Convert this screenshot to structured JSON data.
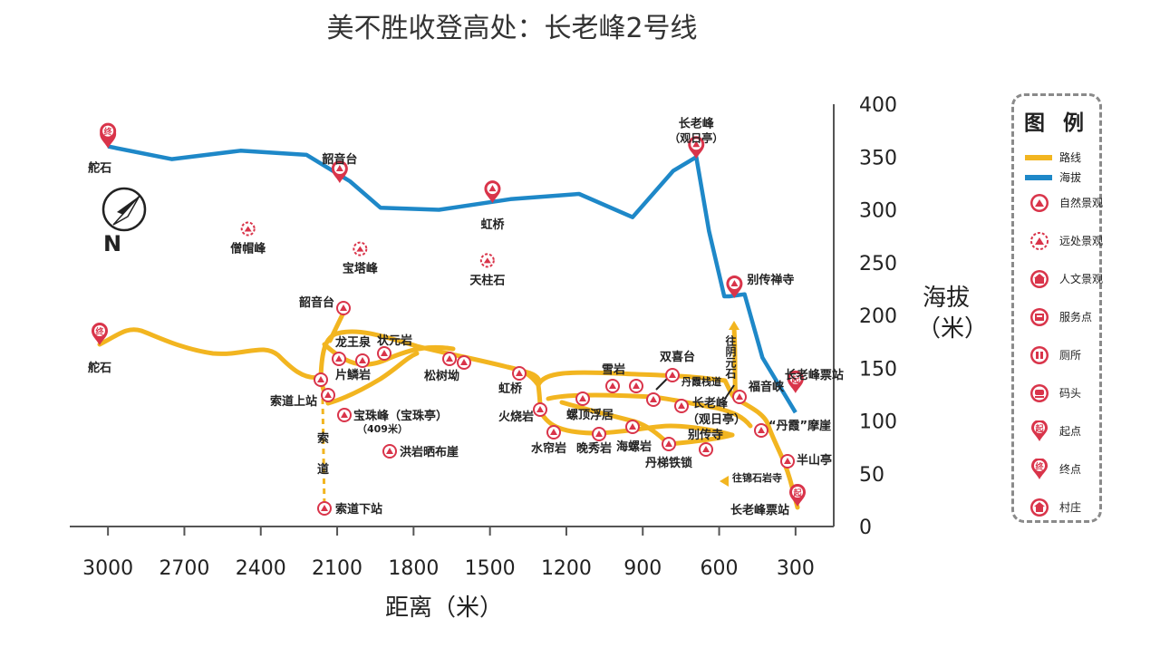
{
  "title": "美不胜收登高处：长老峰2号线",
  "axes": {
    "x_label": "距离（米）",
    "y_label_line1": "海拔",
    "y_label_line2": "（米）"
  },
  "colors": {
    "route": "#F2B520",
    "elevation": "#1E88C8",
    "marker": "#D9344A",
    "axis": "#555555"
  },
  "compass": {
    "label": "N"
  },
  "legend": {
    "title": "图 例",
    "items": [
      {
        "label": "路线",
        "icon": "route-line"
      },
      {
        "label": "海拔",
        "icon": "elevation-line"
      },
      {
        "label": "自然景观",
        "icon": "mountain-pin-icon"
      },
      {
        "label": "远处景观",
        "icon": "distant-view-icon"
      },
      {
        "label": "人文景观",
        "icon": "temple-icon"
      },
      {
        "label": "服务点",
        "icon": "service-icon"
      },
      {
        "label": "厕所",
        "icon": "toilet-icon"
      },
      {
        "label": "码头",
        "icon": "pier-icon"
      },
      {
        "label": "起点",
        "icon": "start-pin-icon"
      },
      {
        "label": "终点",
        "icon": "end-pin-icon"
      },
      {
        "label": "村庄",
        "icon": "village-icon"
      }
    ]
  },
  "chart_data": {
    "type": "line",
    "x_ticks": [
      3000,
      2700,
      2400,
      2100,
      1800,
      1500,
      1200,
      900,
      600,
      300
    ],
    "y_ticks": [
      0,
      50,
      100,
      150,
      200,
      250,
      300,
      350,
      400
    ],
    "xlim": [
      3150,
      150
    ],
    "ylim": [
      0,
      400
    ],
    "series": [
      {
        "name": "海拔",
        "x": [
          3000,
          2750,
          2480,
          2220,
          2050,
          1930,
          1700,
          1420,
          1150,
          940,
          780,
          690,
          640,
          580,
          560,
          500,
          430,
          300
        ],
        "y": [
          360,
          348,
          356,
          352,
          327,
          302,
          300,
          310,
          315,
          293,
          337,
          350,
          280,
          218,
          218,
          220,
          160,
          108
        ]
      }
    ],
    "elevation_labels": [
      {
        "text": "舵石",
        "x": 3000,
        "y": 360,
        "marker": "end"
      },
      {
        "text": "韶音台",
        "x": 2090,
        "y": 327,
        "marker": "nature"
      },
      {
        "text": "虹桥",
        "x": 1490,
        "y": 308,
        "marker": "nature"
      },
      {
        "text": "长老峰",
        "text2": "（观日亭）",
        "x": 690,
        "y": 350,
        "marker": "nature"
      },
      {
        "text": "别传禅寺",
        "x": 540,
        "y": 218,
        "marker": "nature"
      },
      {
        "text": "长老峰票站",
        "x": 300,
        "y": 128,
        "marker": "start"
      }
    ],
    "distant_views": [
      {
        "text": "僧帽峰",
        "x": 2450,
        "y": 282
      },
      {
        "text": "宝塔峰",
        "x": 2010,
        "y": 263
      },
      {
        "text": "天柱石",
        "x": 1510,
        "y": 252
      }
    ]
  },
  "route_labels": [
    {
      "text": "舵石"
    },
    {
      "text": "韶音台"
    },
    {
      "text": "龙王泉"
    },
    {
      "text": "状元岩"
    },
    {
      "text": "片鳞岩"
    },
    {
      "text": "索道上站"
    },
    {
      "text": "宝珠峰（宝珠亭）"
    },
    {
      "text": "（409米）"
    },
    {
      "text": "洪岩晒布崖"
    },
    {
      "text": "索"
    },
    {
      "text": "道"
    },
    {
      "text": "索道下站"
    },
    {
      "text": "松树坳"
    },
    {
      "text": "虹桥"
    },
    {
      "text": "火烧岩"
    },
    {
      "text": "水帘岩"
    },
    {
      "text": "晚秀岩"
    },
    {
      "text": "海螺岩"
    },
    {
      "text": "螺顶浮居"
    },
    {
      "text": "雪岩"
    },
    {
      "text": "双喜台"
    },
    {
      "text": "丹霞栈道"
    },
    {
      "text": "长老峰"
    },
    {
      "text": "（观日亭）"
    },
    {
      "text": "别传寺"
    },
    {
      "text": "丹梯铁锁"
    },
    {
      "text": "往阴元石"
    },
    {
      "text": "福音峡"
    },
    {
      "text": "“丹霞”摩崖"
    },
    {
      "text": "半山亭"
    },
    {
      "text": "往锦石岩寺"
    },
    {
      "text": "长老峰票站"
    }
  ]
}
